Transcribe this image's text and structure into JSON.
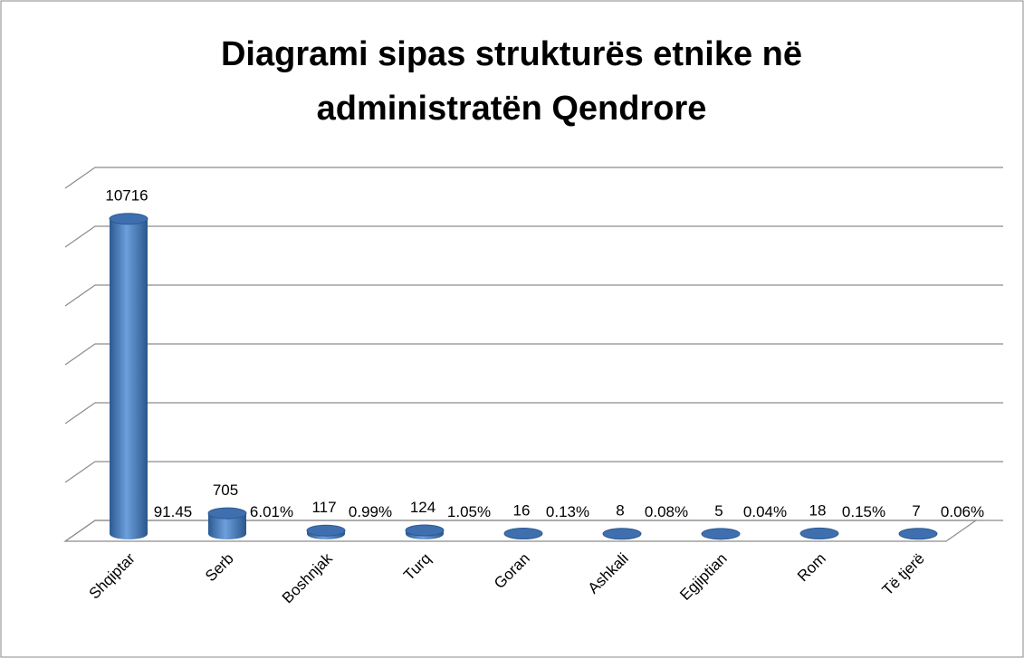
{
  "chart_data": {
    "type": "bar",
    "title": [
      "Diagrami sipas strukturës etnike në",
      "administratën Qendrore"
    ],
    "categories": [
      "Shqiptar",
      "Serb",
      "Boshnjak",
      "Turq",
      "Goran",
      "Ashkali",
      "Egjiptian",
      "Rom",
      "Të tjerë"
    ],
    "series": [
      {
        "color": "#4f81bd",
        "values": [
          10716,
          705,
          117,
          124,
          16,
          8,
          5,
          18,
          7
        ]
      },
      {
        "values": [
          91.45,
          6.01,
          0.99,
          1.05,
          0.13,
          0.08,
          0.04,
          0.15,
          0.06
        ],
        "value_labels": [
          "91.45",
          "6.01%",
          "0.99%",
          "1.05%",
          "0.13%",
          "0.08%",
          "0.04%",
          "0.15%",
          "0.06%"
        ]
      }
    ],
    "ylim": [
      0,
      12000
    ],
    "yticks": [
      0,
      2000,
      4000,
      6000,
      8000,
      10000,
      12000
    ],
    "grid": true
  }
}
